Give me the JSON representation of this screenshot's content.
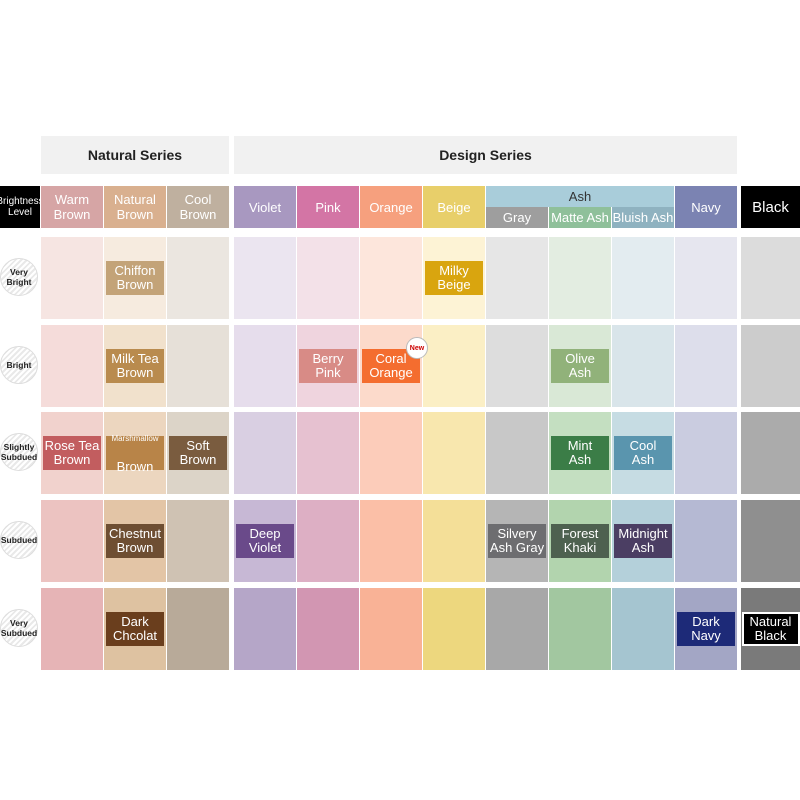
{
  "series": {
    "natural": "Natural Series",
    "design": "Design Series"
  },
  "corner_label": "Brightness\nLevel",
  "columns": [
    {
      "label": "Warm\nBrown",
      "header_color": "#d6a5a5"
    },
    {
      "label": "Natural\nBrown",
      "header_color": "#d9b08f"
    },
    {
      "label": "Cool\nBrown",
      "header_color": "#bfb09f"
    },
    {
      "label": "Violet",
      "header_color": "#a898c0"
    },
    {
      "label": "Pink",
      "header_color": "#d375a5"
    },
    {
      "label": "Orange",
      "header_color": "#f6a07e"
    },
    {
      "label": "Beige",
      "header_color": "#e8cf6a"
    },
    {
      "label": "Gray",
      "header_color": "#9e9e9e"
    },
    {
      "label": "Matte Ash",
      "header_color": "#8fc09a"
    },
    {
      "label": "Bluish Ash",
      "header_color": "#8fb2c0"
    },
    {
      "label": "Navy",
      "header_color": "#7b83b2"
    },
    {
      "label": "Black",
      "header_color": "#000000"
    }
  ],
  "ash_group_label": "Ash",
  "ash_group_color": "#a9cdda",
  "rows": [
    {
      "label": "Very\nBright"
    },
    {
      "label": "Bright"
    },
    {
      "label": "Slightly\nSubdued"
    },
    {
      "label": "Subdued"
    },
    {
      "label": "Very\nSubdued"
    }
  ],
  "cell_colors": [
    [
      "#f6e5e2",
      "#f6ebdf",
      "#ebe6e0",
      "#ebe5f0",
      "#f3e1e8",
      "#fde6dc",
      "#fdf3d5",
      "#e6e6e6",
      "#e3ede1",
      "#e3ecf0",
      "#e6e6ef",
      "#dcdcdc"
    ],
    [
      "#f5dcda",
      "#f1e1cc",
      "#e6e0d8",
      "#e6ddec",
      "#efd4de",
      "#fcdacb",
      "#fbefc5",
      "#dddddd",
      "#d9e8d6",
      "#d9e5ea",
      "#dddeeb",
      "#cccccc"
    ],
    [
      "#f1d2cd",
      "#ecd6bf",
      "#dcd4c8",
      "#d9cfe2",
      "#e6c1d0",
      "#fcccba",
      "#f8e7ae",
      "#c8c8c8",
      "#c4dfc1",
      "#c6dce3",
      "#cacce0",
      "#ababab"
    ],
    [
      "#ecc3c1",
      "#e3c5a6",
      "#cfc2b3",
      "#c7b8d5",
      "#ddafc4",
      "#fbbfa7",
      "#f4df98",
      "#b5b5b5",
      "#b2d4ae",
      "#b4d0da",
      "#b5b9d3",
      "#8f8f8f"
    ],
    [
      "#e6b4b6",
      "#dec2a1",
      "#b8aa99",
      "#b5a6c8",
      "#d296b2",
      "#f9b296",
      "#edd77e",
      "#a8a8a8",
      "#a2c7a0",
      "#a5c5d0",
      "#a3a6c5",
      "#7a7a7a"
    ]
  ],
  "chips": [
    {
      "row": 0,
      "col": 1,
      "label": "Chiffon\nBrown",
      "color": "#c3a378"
    },
    {
      "row": 0,
      "col": 6,
      "label": "Milky\nBeige",
      "color": "#d9a50f"
    },
    {
      "row": 1,
      "col": 1,
      "label": "Milk Tea\nBrown",
      "color": "#b98b4e"
    },
    {
      "row": 1,
      "col": 4,
      "label": "Berry\nPink",
      "color": "#d88b86"
    },
    {
      "row": 1,
      "col": 5,
      "label": "Coral\nOrange",
      "color": "#f46d2f",
      "badge": "New"
    },
    {
      "row": 1,
      "col": 8,
      "label": "Olive\nAsh",
      "color": "#91b27a"
    },
    {
      "row": 2,
      "col": 0,
      "label": "Rose Tea\nBrown",
      "color": "#c25d5f"
    },
    {
      "row": 2,
      "col": 1,
      "label": "Marshmallow\nBrown",
      "color": "#b88448",
      "small_first": true
    },
    {
      "row": 2,
      "col": 2,
      "label": "Soft\nBrown",
      "color": "#7a5c3f"
    },
    {
      "row": 2,
      "col": 8,
      "label": "Mint\nAsh",
      "color": "#3b7d47"
    },
    {
      "row": 2,
      "col": 9,
      "label": "Cool\nAsh",
      "color": "#5a95ae"
    },
    {
      "row": 3,
      "col": 1,
      "label": "Chestnut\nBrown",
      "color": "#6e4e32"
    },
    {
      "row": 3,
      "col": 3,
      "label": "Deep\nViolet",
      "color": "#6a4a8a"
    },
    {
      "row": 3,
      "col": 7,
      "label": "Silvery\nAsh Gray",
      "color": "#6d6d70"
    },
    {
      "row": 3,
      "col": 8,
      "label": "Forest\nKhaki",
      "color": "#4e6150"
    },
    {
      "row": 3,
      "col": 9,
      "label": "Midnight\nAsh",
      "color": "#4b3e63"
    },
    {
      "row": 4,
      "col": 1,
      "label": "Dark\nChcolat",
      "color": "#6a3e1d"
    },
    {
      "row": 4,
      "col": 10,
      "label": "Dark\nNavy",
      "color": "#1d2a78"
    },
    {
      "row": 4,
      "col": 11,
      "label": "Natural\nBlack",
      "color": "#000000"
    }
  ]
}
